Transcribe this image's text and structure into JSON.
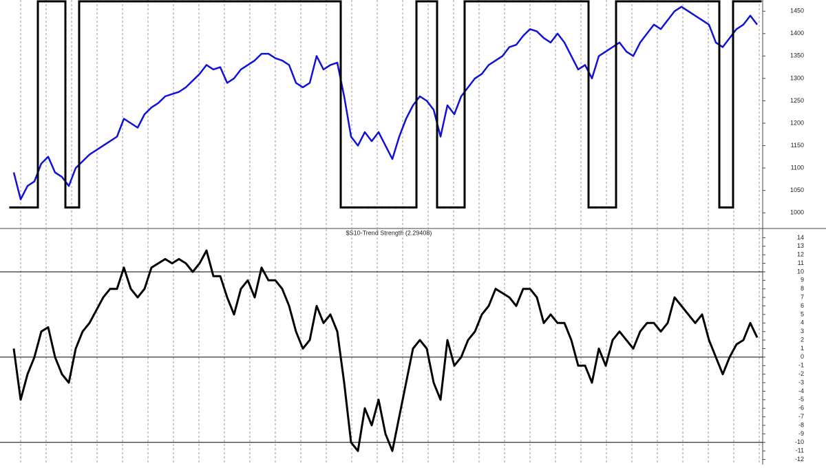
{
  "chart_data": [
    {
      "type": "line",
      "series": [
        {
          "color": "#1010d8",
          "style": "line",
          "values": [
            1090,
            1030,
            1060,
            1070,
            1110,
            1125,
            1090,
            1080,
            1060,
            1100,
            1115,
            1130,
            1140,
            1150,
            1160,
            1170,
            1210,
            1200,
            1190,
            1220,
            1235,
            1245,
            1260,
            1265,
            1270,
            1280,
            1295,
            1310,
            1330,
            1320,
            1325,
            1290,
            1300,
            1320,
            1330,
            1340,
            1355,
            1355,
            1345,
            1340,
            1330,
            1290,
            1280,
            1290,
            1350,
            1320,
            1330,
            1335,
            1260,
            1170,
            1150,
            1180,
            1160,
            1180,
            1150,
            1120,
            1170,
            1210,
            1240,
            1260,
            1250,
            1230,
            1170,
            1240,
            1220,
            1260,
            1280,
            1300,
            1310,
            1330,
            1340,
            1350,
            1370,
            1375,
            1395,
            1410,
            1405,
            1390,
            1380,
            1400,
            1380,
            1350,
            1320,
            1330,
            1300,
            1350,
            1360,
            1370,
            1380,
            1360,
            1350,
            1380,
            1400,
            1420,
            1410,
            1430,
            1450,
            1460,
            1450,
            1440,
            1430,
            1420,
            1380,
            1370,
            1390,
            1410,
            1420,
            1440,
            1420
          ]
        },
        {
          "color": "#000000",
          "style": "step",
          "values": [
            1012,
            1012,
            1012,
            1012,
            1472,
            1472,
            1472,
            1472,
            1012,
            1012,
            1472,
            1472,
            1472,
            1472,
            1472,
            1472,
            1472,
            1472,
            1472,
            1472,
            1472,
            1472,
            1472,
            1472,
            1472,
            1472,
            1472,
            1472,
            1472,
            1472,
            1472,
            1472,
            1472,
            1472,
            1472,
            1472,
            1472,
            1472,
            1472,
            1472,
            1472,
            1472,
            1472,
            1472,
            1472,
            1472,
            1472,
            1472,
            1012,
            1012,
            1012,
            1012,
            1012,
            1012,
            1012,
            1012,
            1012,
            1012,
            1012,
            1472,
            1472,
            1472,
            1012,
            1012,
            1012,
            1012,
            1472,
            1472,
            1472,
            1472,
            1472,
            1472,
            1472,
            1472,
            1472,
            1472,
            1472,
            1472,
            1472,
            1472,
            1472,
            1472,
            1472,
            1472,
            1012,
            1012,
            1012,
            1012,
            1472,
            1472,
            1472,
            1472,
            1472,
            1472,
            1472,
            1472,
            1472,
            1472,
            1472,
            1472,
            1472,
            1472,
            1472,
            1012,
            1012,
            1472,
            1472,
            1472,
            1472
          ]
        }
      ],
      "ylim": [
        965,
        1475
      ],
      "yticks": [
        1000,
        1050,
        1100,
        1150,
        1200,
        1250,
        1300,
        1350,
        1400,
        1450
      ],
      "grid": "vertical-dashed"
    },
    {
      "type": "line",
      "title": "$S10-Trend Strength (2.29408)",
      "series": [
        {
          "color": "#000000",
          "style": "line",
          "values": [
            1,
            -5,
            -2,
            0,
            3,
            3.5,
            0,
            -2,
            -3,
            1,
            3,
            4,
            5.5,
            7,
            8,
            8,
            10.5,
            8,
            7,
            8,
            10.5,
            11,
            11.5,
            11,
            11.5,
            11,
            10,
            11,
            12.5,
            9.5,
            9.5,
            7,
            5,
            8,
            9,
            7,
            10.5,
            9,
            9,
            8,
            6,
            3,
            1,
            2,
            6,
            4,
            5,
            3,
            -3,
            -10,
            -11,
            -6,
            -8,
            -5,
            -9,
            -11,
            -7,
            -3,
            1,
            2,
            1,
            -3,
            -5,
            2,
            -1,
            0,
            2,
            3,
            5,
            6,
            8,
            7.5,
            7,
            6,
            8,
            8,
            7,
            4,
            5,
            4,
            4,
            2,
            -1,
            -1,
            -3,
            1,
            -1,
            2,
            3,
            2,
            1,
            3,
            4,
            4,
            3,
            4,
            7,
            6,
            5,
            4,
            5,
            2,
            0,
            -2,
            0,
            1.5,
            2,
            4,
            2.3
          ]
        }
      ],
      "ylim": [
        -12.6,
        15
      ],
      "yticks": [
        -12,
        -11,
        -10,
        -9,
        -8,
        -7,
        -6,
        -5,
        -4,
        -3,
        -2,
        -1,
        0,
        1,
        2,
        3,
        4,
        5,
        6,
        7,
        8,
        9,
        10,
        11,
        12,
        13,
        14
      ],
      "hlines": [
        10,
        0,
        -10
      ],
      "grid": "vertical-dashed"
    }
  ]
}
